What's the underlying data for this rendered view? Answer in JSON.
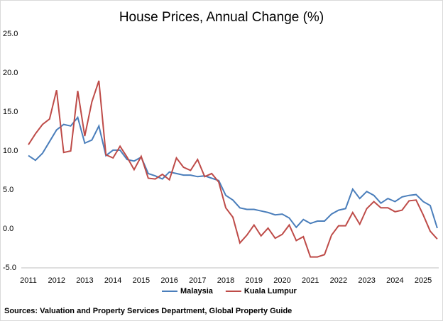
{
  "chart_data": {
    "type": "line",
    "title": "House Prices, Annual Change (%)",
    "source": "Sources: Valuation and Property Services Department, Global Property Guide",
    "categories": [
      "2011",
      null,
      null,
      null,
      "2012",
      null,
      null,
      null,
      "2013",
      null,
      null,
      null,
      "2014",
      null,
      null,
      null,
      "2015",
      null,
      null,
      null,
      "2016",
      null,
      null,
      null,
      "2017",
      null,
      null,
      null,
      "2018",
      null,
      null,
      null,
      "2019",
      null,
      null,
      null,
      "2020",
      null,
      null,
      null,
      "2021",
      null,
      null,
      null,
      "2022",
      null,
      null,
      null,
      "2023",
      null,
      null,
      null,
      "2024",
      null,
      null,
      null,
      "2025",
      null,
      null
    ],
    "series": [
      {
        "name": "Malaysia",
        "color": "#4a7ebb",
        "values": [
          9.4,
          8.8,
          9.7,
          11.2,
          12.7,
          13.4,
          13.2,
          14.3,
          11.0,
          11.4,
          13.2,
          9.4,
          10.1,
          10.1,
          8.9,
          8.7,
          9.2,
          7.1,
          6.8,
          6.4,
          7.3,
          7.1,
          6.9,
          6.9,
          6.7,
          6.8,
          6.5,
          6.2,
          4.3,
          3.7,
          2.7,
          2.5,
          2.5,
          2.3,
          2.1,
          1.8,
          1.9,
          1.4,
          0.2,
          1.2,
          0.7,
          1.0,
          1.0,
          1.9,
          2.4,
          2.6,
          5.1,
          3.9,
          4.8,
          4.3,
          3.3,
          3.9,
          3.5,
          4.1,
          4.3,
          4.4,
          3.5,
          3.0,
          0.1
        ]
      },
      {
        "name": "Kuala Lumpur",
        "color": "#be4b48",
        "values": [
          10.8,
          12.2,
          13.4,
          14.1,
          17.8,
          9.8,
          10.0,
          17.7,
          11.9,
          16.3,
          19.0,
          9.5,
          9.1,
          10.6,
          9.2,
          7.6,
          9.3,
          6.5,
          6.4,
          7.0,
          6.3,
          9.1,
          7.9,
          7.5,
          8.9,
          6.7,
          7.1,
          6.0,
          2.7,
          1.5,
          -1.8,
          -0.8,
          0.5,
          -0.9,
          0.1,
          -1.2,
          -0.7,
          0.5,
          -1.5,
          -1.0,
          -3.6,
          -3.6,
          -3.3,
          -0.8,
          0.4,
          0.4,
          2.1,
          0.6,
          2.6,
          3.5,
          2.7,
          2.7,
          2.2,
          2.4,
          3.6,
          3.7,
          1.8,
          -0.3,
          -1.3
        ]
      }
    ],
    "ylim": [
      -5,
      25
    ],
    "yticks": [
      {
        "value": -5,
        "label": "-5.0"
      },
      {
        "value": 0,
        "label": "0.0"
      },
      {
        "value": 5,
        "label": "5.0"
      },
      {
        "value": 10,
        "label": "10.0"
      },
      {
        "value": 15,
        "label": "15.0"
      },
      {
        "value": 20,
        "label": "20.0"
      },
      {
        "value": 25,
        "label": "25.0"
      }
    ],
    "grid": false,
    "legend": "bottom"
  }
}
